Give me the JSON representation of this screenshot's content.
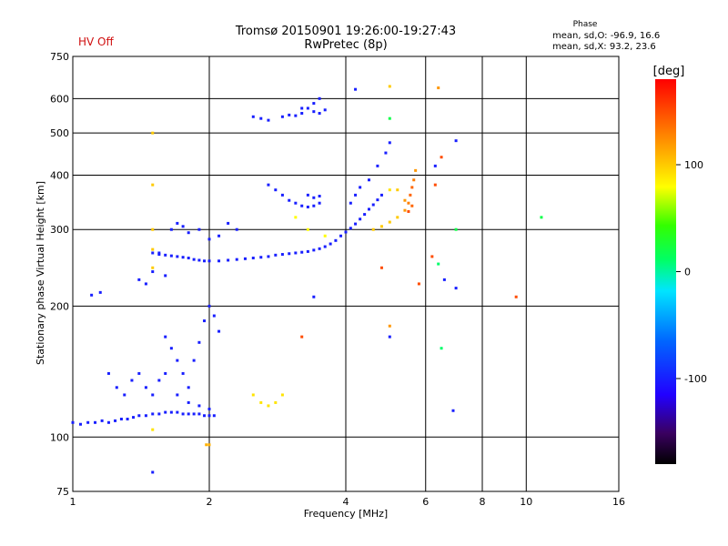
{
  "header": {
    "status": "HV Off",
    "title_line1": "Tromsø 20150901 19:26:00-19:27:43",
    "title_line2": "RwPretec (8p)",
    "phase_title": "Phase",
    "phase_o": "mean, sd,O: -96.9, 16.6",
    "phase_x": "mean, sd,X:  93.2, 23.6"
  },
  "colorbar": {
    "unit": "[deg]",
    "ticks": [
      {
        "label": "100",
        "value": 100
      },
      {
        "label": "0",
        "value": 0
      },
      {
        "label": "-100",
        "value": -100
      }
    ],
    "range": [
      -180,
      180
    ]
  },
  "chart_data": {
    "type": "scatter",
    "xlabel": "Frequency [MHz]",
    "ylabel": "Stationary phase Virtual Height [km]",
    "x_scale": "log",
    "y_scale": "log",
    "xlim": [
      1,
      16
    ],
    "ylim": [
      75,
      750
    ],
    "x_ticks": [
      {
        "label": "1",
        "value": 1
      },
      {
        "label": "2",
        "value": 2
      },
      {
        "label": "4",
        "value": 4
      },
      {
        "label": "6",
        "value": 6
      },
      {
        "label": "8",
        "value": 8
      },
      {
        "label": "10",
        "value": 10
      },
      {
        "label": "16",
        "value": 16
      }
    ],
    "y_ticks": [
      {
        "label": "75",
        "value": 75
      },
      {
        "label": "100",
        "value": 100
      },
      {
        "label": "200",
        "value": 200
      },
      {
        "label": "300",
        "value": 300
      },
      {
        "label": "400",
        "value": 400
      },
      {
        "label": "500",
        "value": 500
      },
      {
        "label": "600",
        "value": 600
      },
      {
        "label": "750",
        "value": 750
      }
    ],
    "series": [
      {
        "points": [
          [
            1.0,
            108,
            -100
          ],
          [
            1.04,
            107,
            -100
          ],
          [
            1.08,
            108,
            -100
          ],
          [
            1.12,
            108,
            -100
          ],
          [
            1.16,
            109,
            -100
          ],
          [
            1.2,
            108,
            -100
          ],
          [
            1.24,
            109,
            -100
          ],
          [
            1.28,
            110,
            -100
          ],
          [
            1.32,
            110,
            -100
          ],
          [
            1.36,
            111,
            -100
          ],
          [
            1.4,
            112,
            -100
          ],
          [
            1.45,
            112,
            -100
          ],
          [
            1.5,
            113,
            -100
          ],
          [
            1.55,
            113,
            -100
          ],
          [
            1.6,
            114,
            -100
          ],
          [
            1.65,
            114,
            -100
          ],
          [
            1.7,
            114,
            -100
          ],
          [
            1.75,
            113,
            -100
          ],
          [
            1.8,
            113,
            -100
          ],
          [
            1.85,
            113,
            -100
          ],
          [
            1.9,
            113,
            -100
          ],
          [
            1.95,
            112,
            -100
          ],
          [
            2.0,
            112,
            -100
          ],
          [
            2.05,
            112,
            -100
          ],
          [
            1.5,
            265,
            -100
          ],
          [
            1.55,
            263,
            -100
          ],
          [
            1.6,
            262,
            -100
          ],
          [
            1.65,
            261,
            -100
          ],
          [
            1.7,
            260,
            -100
          ],
          [
            1.75,
            259,
            -100
          ],
          [
            1.8,
            258,
            -100
          ],
          [
            1.85,
            256,
            -100
          ],
          [
            1.9,
            255,
            -100
          ],
          [
            1.95,
            254,
            -100
          ],
          [
            2.0,
            254,
            -100
          ],
          [
            2.1,
            254,
            -100
          ],
          [
            2.2,
            255,
            -100
          ],
          [
            2.3,
            256,
            -100
          ],
          [
            2.4,
            257,
            -100
          ],
          [
            2.5,
            258,
            -100
          ],
          [
            2.6,
            259,
            -100
          ],
          [
            2.7,
            260,
            -100
          ],
          [
            2.8,
            262,
            -100
          ],
          [
            2.9,
            263,
            -100
          ],
          [
            3.0,
            264,
            -100
          ],
          [
            3.1,
            265,
            -100
          ],
          [
            3.2,
            266,
            -100
          ],
          [
            3.3,
            267,
            -100
          ],
          [
            3.4,
            269,
            -100
          ],
          [
            3.5,
            271,
            -100
          ],
          [
            3.6,
            274,
            -100
          ],
          [
            3.7,
            278,
            -100
          ],
          [
            3.8,
            283,
            -100
          ],
          [
            3.9,
            290,
            -100
          ],
          [
            4.0,
            296,
            -100
          ],
          [
            4.1,
            302,
            -100
          ],
          [
            4.2,
            309,
            -100
          ],
          [
            4.3,
            317,
            -100
          ],
          [
            4.4,
            325,
            -100
          ],
          [
            4.5,
            334,
            -100
          ],
          [
            4.6,
            342,
            -100
          ],
          [
            4.7,
            351,
            -100
          ],
          [
            4.8,
            360,
            -100
          ],
          [
            4.6,
            300,
            100
          ],
          [
            4.8,
            305,
            100
          ],
          [
            5.0,
            312,
            100
          ],
          [
            5.2,
            320,
            100
          ],
          [
            5.4,
            332,
            120
          ],
          [
            5.5,
            345,
            130
          ],
          [
            5.55,
            360,
            140
          ],
          [
            5.6,
            375,
            140
          ],
          [
            5.65,
            390,
            130
          ],
          [
            5.7,
            410,
            120
          ],
          [
            5.6,
            340,
            140
          ],
          [
            5.5,
            330,
            150
          ],
          [
            1.5,
            500,
            100
          ],
          [
            1.5,
            380,
            100
          ],
          [
            1.5,
            300,
            100
          ],
          [
            1.5,
            270,
            100
          ],
          [
            1.5,
            245,
            100
          ],
          [
            1.55,
            265,
            -100
          ],
          [
            1.6,
            235,
            -100
          ],
          [
            1.65,
            300,
            -100
          ],
          [
            1.7,
            310,
            -100
          ],
          [
            1.75,
            305,
            -100
          ],
          [
            1.8,
            295,
            -100
          ],
          [
            1.9,
            300,
            -100
          ],
          [
            2.0,
            285,
            -100
          ],
          [
            2.1,
            290,
            -100
          ],
          [
            2.2,
            310,
            -100
          ],
          [
            2.3,
            300,
            -100
          ],
          [
            1.6,
            170,
            -100
          ],
          [
            1.65,
            160,
            -100
          ],
          [
            1.7,
            150,
            -100
          ],
          [
            1.75,
            140,
            -100
          ],
          [
            1.8,
            130,
            -100
          ],
          [
            1.85,
            150,
            -100
          ],
          [
            1.9,
            165,
            -100
          ],
          [
            1.95,
            185,
            -100
          ],
          [
            2.0,
            200,
            -100
          ],
          [
            2.05,
            190,
            -100
          ],
          [
            2.1,
            175,
            -100
          ],
          [
            1.2,
            140,
            -100
          ],
          [
            1.25,
            130,
            -100
          ],
          [
            1.3,
            125,
            -100
          ],
          [
            1.35,
            135,
            -100
          ],
          [
            1.4,
            140,
            -100
          ],
          [
            1.45,
            130,
            -100
          ],
          [
            1.5,
            125,
            -100
          ],
          [
            1.55,
            135,
            -100
          ],
          [
            1.6,
            140,
            -100
          ],
          [
            1.7,
            125,
            -100
          ],
          [
            1.8,
            120,
            -100
          ],
          [
            1.9,
            118,
            -100
          ],
          [
            2.0,
            116,
            -100
          ],
          [
            1.1,
            212,
            -100
          ],
          [
            1.15,
            215,
            -100
          ],
          [
            1.4,
            230,
            -100
          ],
          [
            1.45,
            225,
            -100
          ],
          [
            1.5,
            240,
            -100
          ],
          [
            2.5,
            545,
            -100
          ],
          [
            2.6,
            540,
            -100
          ],
          [
            2.7,
            535,
            -100
          ],
          [
            2.9,
            545,
            -100
          ],
          [
            3.0,
            550,
            -100
          ],
          [
            3.1,
            548,
            -100
          ],
          [
            3.2,
            555,
            -100
          ],
          [
            3.3,
            570,
            -100
          ],
          [
            3.4,
            585,
            -100
          ],
          [
            3.5,
            600,
            -100
          ],
          [
            3.2,
            570,
            -100
          ],
          [
            3.4,
            560,
            -100
          ],
          [
            3.5,
            555,
            -100
          ],
          [
            3.6,
            565,
            -100
          ],
          [
            2.7,
            380,
            -100
          ],
          [
            2.8,
            370,
            -100
          ],
          [
            2.9,
            360,
            -100
          ],
          [
            3.0,
            350,
            -100
          ],
          [
            3.1,
            345,
            -100
          ],
          [
            3.2,
            340,
            -100
          ],
          [
            3.3,
            338,
            -100
          ],
          [
            3.4,
            340,
            -100
          ],
          [
            3.5,
            345,
            -100
          ],
          [
            3.3,
            360,
            -100
          ],
          [
            3.4,
            355,
            -100
          ],
          [
            3.5,
            358,
            -100
          ],
          [
            2.5,
            125,
            90
          ],
          [
            2.6,
            120,
            90
          ],
          [
            2.7,
            118,
            90
          ],
          [
            2.8,
            120,
            90
          ],
          [
            2.9,
            125,
            90
          ],
          [
            3.1,
            320,
            80
          ],
          [
            3.3,
            300,
            80
          ],
          [
            3.6,
            290,
            80
          ],
          [
            5.0,
            370,
            90
          ],
          [
            5.2,
            370,
            100
          ],
          [
            5.4,
            350,
            120
          ],
          [
            4.1,
            345,
            -100
          ],
          [
            4.2,
            360,
            -100
          ],
          [
            4.3,
            375,
            -100
          ],
          [
            4.5,
            390,
            -100
          ],
          [
            4.7,
            420,
            -100
          ],
          [
            4.9,
            450,
            -100
          ],
          [
            5.0,
            475,
            -100
          ],
          [
            4.2,
            630,
            -100
          ],
          [
            5.0,
            640,
            100
          ],
          [
            6.4,
            635,
            120
          ],
          [
            5.0,
            540,
            20
          ],
          [
            6.5,
            440,
            150
          ],
          [
            6.3,
            420,
            -100
          ],
          [
            7.0,
            480,
            -100
          ],
          [
            7.0,
            300,
            20
          ],
          [
            6.2,
            260,
            150
          ],
          [
            6.4,
            250,
            10
          ],
          [
            6.6,
            230,
            -100
          ],
          [
            7.0,
            220,
            -100
          ],
          [
            6.3,
            380,
            150
          ],
          [
            5.8,
            225,
            150
          ],
          [
            4.8,
            245,
            150
          ],
          [
            5.0,
            170,
            -100
          ],
          [
            5.0,
            180,
            120
          ],
          [
            6.5,
            160,
            10
          ],
          [
            3.4,
            210,
            -100
          ],
          [
            3.2,
            170,
            150
          ],
          [
            6.9,
            115,
            -100
          ],
          [
            9.5,
            210,
            150
          ],
          [
            10.8,
            320,
            20
          ],
          [
            1.5,
            104,
            90
          ],
          [
            1.5,
            83,
            -100
          ],
          [
            1.97,
            96,
            110
          ],
          [
            2.0,
            96,
            110
          ]
        ]
      }
    ]
  }
}
